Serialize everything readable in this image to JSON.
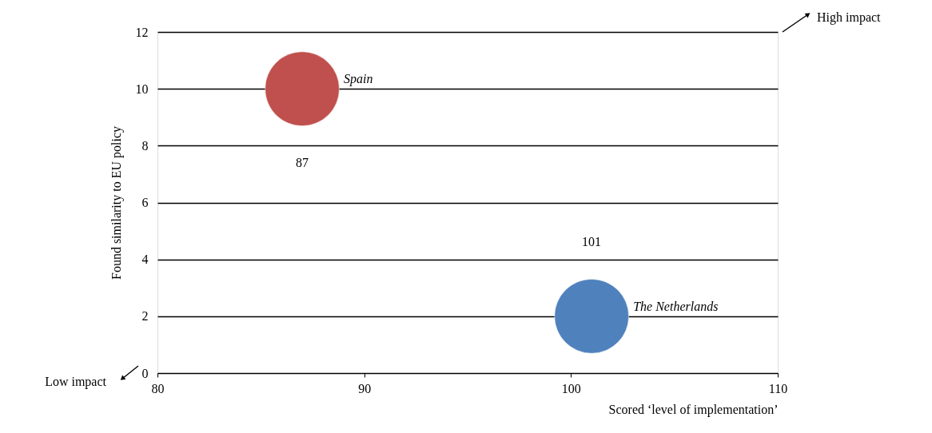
{
  "chart_data": {
    "type": "bubble",
    "xlabel": "Scored ‘level of implementation’",
    "ylabel": "Found similarity to EU policy",
    "series": [
      {
        "name": "Spain",
        "color": "#c0504d",
        "x": [
          87
        ],
        "values": [
          10
        ],
        "sizes": [
          1
        ]
      },
      {
        "name": "The Netherlands",
        "color": "#4f81bd",
        "x": [
          101
        ],
        "values": [
          2
        ],
        "sizes": [
          1
        ]
      }
    ],
    "annotations": [
      "87",
      "101",
      "High impact",
      "Low impact"
    ],
    "xlim": [
      80,
      110
    ],
    "xticks": [
      80,
      90,
      100,
      110
    ],
    "ylim": [
      0,
      12
    ],
    "yticks": [
      0,
      2,
      4,
      6,
      8,
      10,
      12
    ],
    "grid": "y",
    "legend": false
  }
}
